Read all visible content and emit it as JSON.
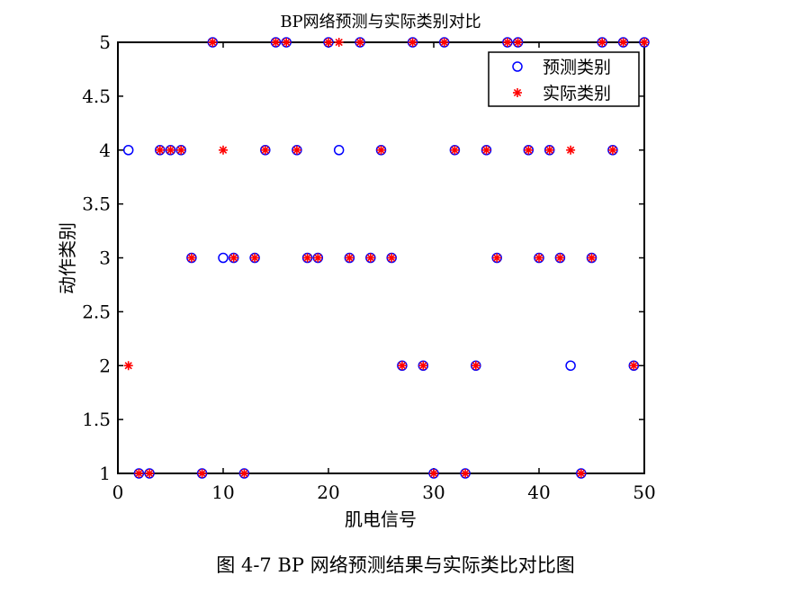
{
  "caption": "图 4-7 BP 网络预测结果与实际类比对比图",
  "chart_data": {
    "type": "scatter",
    "title": "BP网络预测与实际类别对比",
    "xlabel": "肌电信号",
    "ylabel": "动作类别",
    "xlim": [
      0,
      50
    ],
    "ylim": [
      1,
      5
    ],
    "xticks": [
      "0",
      "10",
      "20",
      "30",
      "40",
      "50"
    ],
    "yticks": [
      "1",
      "1.5",
      "2",
      "2.5",
      "3",
      "3.5",
      "4",
      "4.5",
      "5"
    ],
    "grid": false,
    "legend_position": "top-right",
    "x": [
      1,
      2,
      3,
      4,
      5,
      6,
      7,
      8,
      9,
      10,
      11,
      12,
      13,
      14,
      15,
      16,
      17,
      18,
      19,
      20,
      21,
      22,
      23,
      24,
      25,
      26,
      27,
      28,
      29,
      30,
      31,
      32,
      33,
      34,
      35,
      36,
      37,
      38,
      39,
      40,
      41,
      42,
      43,
      44,
      45,
      46,
      47,
      48,
      49,
      50
    ],
    "series": [
      {
        "name": "预测类别",
        "marker": "circle",
        "color": "#0000ff",
        "values": [
          4,
          1,
          1,
          4,
          4,
          4,
          3,
          1,
          5,
          3,
          3,
          1,
          3,
          4,
          5,
          5,
          4,
          3,
          3,
          5,
          4,
          3,
          5,
          3,
          4,
          3,
          2,
          5,
          2,
          1,
          5,
          4,
          1,
          2,
          4,
          3,
          5,
          5,
          4,
          3,
          4,
          3,
          2,
          1,
          3,
          5,
          4,
          5,
          2,
          5
        ]
      },
      {
        "name": "实际类别",
        "marker": "star",
        "color": "#ff0000",
        "values": [
          2,
          1,
          1,
          4,
          4,
          4,
          3,
          1,
          5,
          4,
          3,
          1,
          3,
          4,
          5,
          5,
          4,
          3,
          3,
          5,
          5,
          3,
          5,
          3,
          4,
          3,
          2,
          5,
          2,
          1,
          5,
          4,
          1,
          2,
          4,
          3,
          5,
          5,
          4,
          3,
          4,
          3,
          4,
          1,
          3,
          5,
          4,
          5,
          2,
          5
        ]
      }
    ]
  }
}
